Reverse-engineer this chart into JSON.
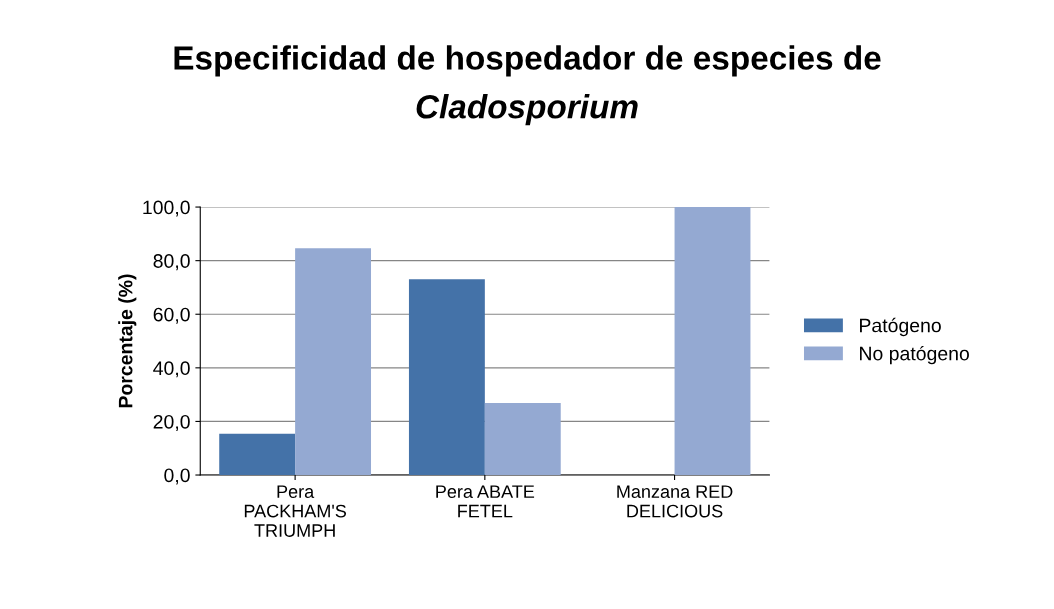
{
  "chart_data": {
    "type": "bar",
    "title": "Especificidad de hospedador de especies de Cladosporium",
    "ylabel": "Porcentaje (%)",
    "categories": [
      "Pera\nPACKHAM'S\nTRIUMPH",
      "Pera ABATE\nFETEL",
      "Manzana RED\nDELICIOUS"
    ],
    "series": [
      {
        "name": "Patógeno",
        "color": "#4472a8",
        "values": [
          15.4,
          73.1,
          0.0
        ]
      },
      {
        "name": "No patógeno",
        "color": "#94a9d2",
        "values": [
          84.6,
          26.9,
          100.0
        ]
      }
    ],
    "ylim": [
      0,
      100
    ],
    "yticks": [
      {
        "value": 0,
        "label": "0,0"
      },
      {
        "value": 20,
        "label": "20,0"
      },
      {
        "value": 40,
        "label": "40,0"
      },
      {
        "value": 60,
        "label": "60,0"
      },
      {
        "value": 80,
        "label": "80,0"
      },
      {
        "value": 100,
        "label": "100,0"
      }
    ],
    "grid": "y",
    "legend": "right"
  }
}
